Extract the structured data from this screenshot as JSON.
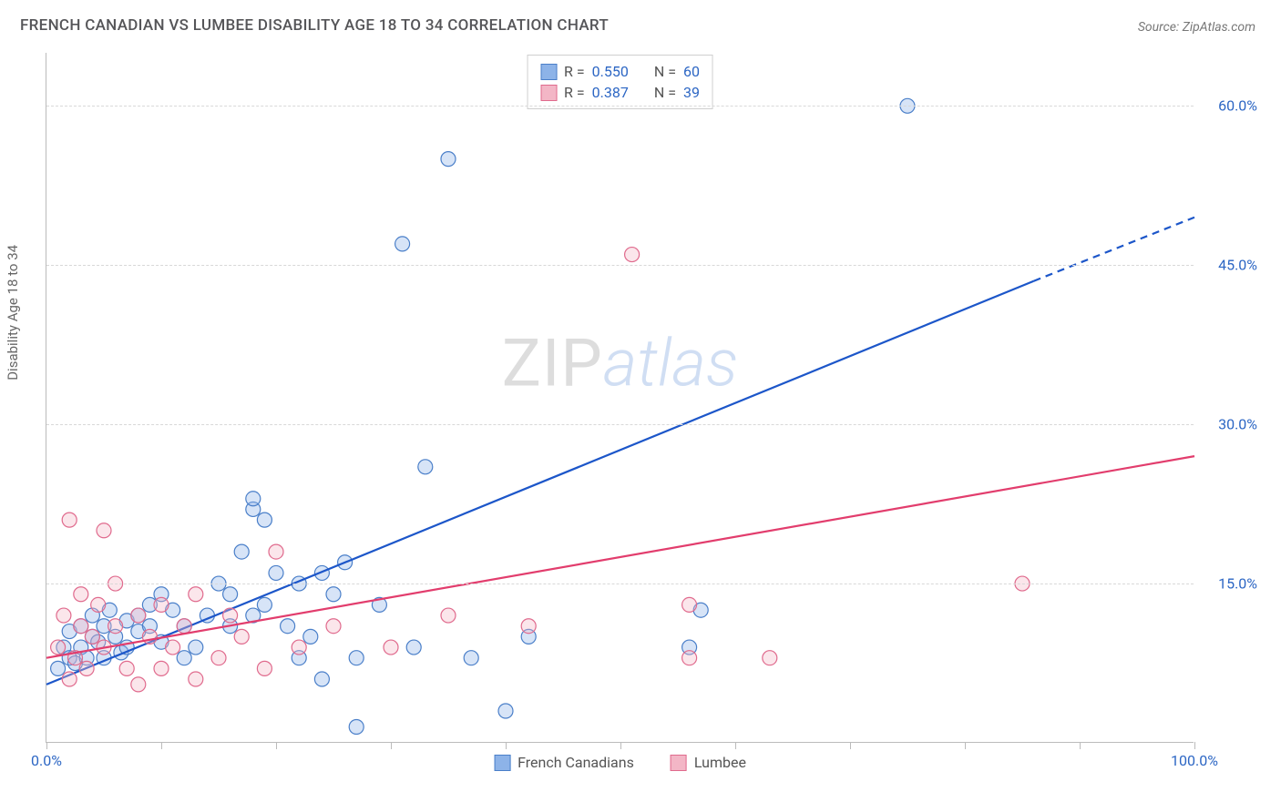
{
  "title": "FRENCH CANADIAN VS LUMBEE DISABILITY AGE 18 TO 34 CORRELATION CHART",
  "source": "Source: ZipAtlas.com",
  "y_axis_label": "Disability Age 18 to 34",
  "watermark": {
    "part1": "ZIP",
    "part2": "atlas"
  },
  "chart": {
    "type": "scatter_with_trend",
    "background_color": "#ffffff",
    "grid_color": "#d8d8d8",
    "axis_color": "#bbbbbb",
    "xlim": [
      0,
      100
    ],
    "ylim": [
      0,
      65
    ],
    "x_ticks": [
      0,
      10,
      20,
      30,
      40,
      50,
      60,
      70,
      80,
      90,
      100
    ],
    "x_tick_labels": {
      "0": "0.0%",
      "100": "100.0%"
    },
    "y_gridlines": [
      15,
      30,
      45,
      60
    ],
    "y_tick_labels": {
      "15": "15.0%",
      "30": "30.0%",
      "45": "45.0%",
      "60": "60.0%"
    },
    "tick_label_color": "#2c66c4",
    "tick_label_fontsize": 16,
    "marker_radius": 8,
    "marker_stroke_width": 1.2,
    "marker_fill_opacity": 0.35,
    "trend_line_width": 2.2,
    "series": [
      {
        "name": "French Canadians",
        "fill_color": "#8db3e8",
        "stroke_color": "#4a7fc9",
        "line_color": "#1c56c9",
        "R": "0.550",
        "N": "60",
        "trend": {
          "x1": 0,
          "y1": 5.5,
          "x2": 86,
          "y2": 43.5,
          "dash_x1": 86,
          "dash_y1": 43.5,
          "dash_x2": 100,
          "dash_y2": 49.5
        },
        "points": [
          [
            1,
            7
          ],
          [
            1.5,
            9
          ],
          [
            2,
            8
          ],
          [
            2,
            10.5
          ],
          [
            2.5,
            7.5
          ],
          [
            3,
            9
          ],
          [
            3,
            11
          ],
          [
            3.5,
            8
          ],
          [
            4,
            10
          ],
          [
            4,
            12
          ],
          [
            4.5,
            9.5
          ],
          [
            5,
            8
          ],
          [
            5,
            11
          ],
          [
            5.5,
            12.5
          ],
          [
            6,
            10
          ],
          [
            6.5,
            8.5
          ],
          [
            7,
            11.5
          ],
          [
            7,
            9
          ],
          [
            8,
            12
          ],
          [
            8,
            10.5
          ],
          [
            9,
            13
          ],
          [
            9,
            11
          ],
          [
            10,
            9.5
          ],
          [
            10,
            14
          ],
          [
            11,
            12.5
          ],
          [
            12,
            8
          ],
          [
            12,
            11
          ],
          [
            13,
            9
          ],
          [
            14,
            12
          ],
          [
            15,
            15
          ],
          [
            16,
            11
          ],
          [
            16,
            14
          ],
          [
            17,
            18
          ],
          [
            18,
            22
          ],
          [
            18,
            12
          ],
          [
            18,
            23
          ],
          [
            19,
            13
          ],
          [
            19,
            21
          ],
          [
            20,
            16
          ],
          [
            21,
            11
          ],
          [
            22,
            8
          ],
          [
            22,
            15
          ],
          [
            23,
            10
          ],
          [
            24,
            16
          ],
          [
            24,
            6
          ],
          [
            25,
            14
          ],
          [
            26,
            17
          ],
          [
            27,
            8
          ],
          [
            27,
            1.5
          ],
          [
            29,
            13
          ],
          [
            31,
            47
          ],
          [
            32,
            9
          ],
          [
            33,
            26
          ],
          [
            35,
            55
          ],
          [
            37,
            8
          ],
          [
            40,
            3
          ],
          [
            42,
            10
          ],
          [
            56,
            9
          ],
          [
            57,
            12.5
          ],
          [
            75,
            60
          ]
        ]
      },
      {
        "name": "Lumbee",
        "fill_color": "#f3b6c6",
        "stroke_color": "#e06a8d",
        "line_color": "#e23d6d",
        "R": "0.387",
        "N": "39",
        "trend": {
          "x1": 0,
          "y1": 8,
          "x2": 100,
          "y2": 27
        },
        "points": [
          [
            1,
            9
          ],
          [
            1.5,
            12
          ],
          [
            2,
            6
          ],
          [
            2,
            21
          ],
          [
            2.5,
            8
          ],
          [
            3,
            11
          ],
          [
            3,
            14
          ],
          [
            3.5,
            7
          ],
          [
            4,
            10
          ],
          [
            4.5,
            13
          ],
          [
            5,
            9
          ],
          [
            5,
            20
          ],
          [
            6,
            11
          ],
          [
            6,
            15
          ],
          [
            7,
            7
          ],
          [
            8,
            12
          ],
          [
            8,
            5.5
          ],
          [
            9,
            10
          ],
          [
            10,
            13
          ],
          [
            10,
            7
          ],
          [
            11,
            9
          ],
          [
            12,
            11
          ],
          [
            13,
            14
          ],
          [
            13,
            6
          ],
          [
            15,
            8
          ],
          [
            16,
            12
          ],
          [
            17,
            10
          ],
          [
            19,
            7
          ],
          [
            20,
            18
          ],
          [
            22,
            9
          ],
          [
            25,
            11
          ],
          [
            30,
            9
          ],
          [
            35,
            12
          ],
          [
            42,
            11
          ],
          [
            51,
            46
          ],
          [
            56,
            13
          ],
          [
            56,
            8
          ],
          [
            63,
            8
          ],
          [
            85,
            15
          ]
        ]
      }
    ],
    "legend_box": {
      "rows": [
        {
          "swatch_fill": "#8db3e8",
          "swatch_stroke": "#4a7fc9",
          "r_label": "R =",
          "r_val": "0.550",
          "n_label": "N =",
          "n_val": "60"
        },
        {
          "swatch_fill": "#f3b6c6",
          "swatch_stroke": "#e06a8d",
          "r_label": "R =",
          "r_val": "0.387",
          "n_label": "N =",
          "n_val": "39"
        }
      ]
    },
    "bottom_legend": [
      {
        "swatch_fill": "#8db3e8",
        "swatch_stroke": "#4a7fc9",
        "label": "French Canadians"
      },
      {
        "swatch_fill": "#f3b6c6",
        "swatch_stroke": "#e06a8d",
        "label": "Lumbee"
      }
    ]
  }
}
